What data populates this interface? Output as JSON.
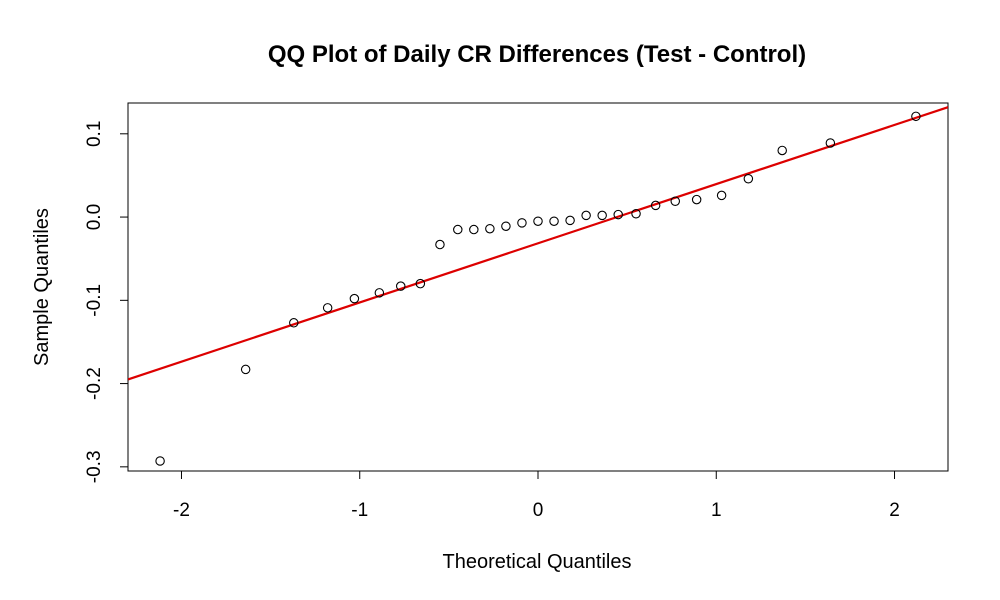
{
  "chart_data": {
    "type": "scatter",
    "title": "QQ Plot of Daily CR Differences (Test - Control)",
    "xlabel": "Theoretical Quantiles",
    "ylabel": "Sample Quantiles",
    "xlim": [
      -2.3,
      2.3
    ],
    "ylim": [
      -0.305,
      0.137
    ],
    "xticks": [
      -2,
      -1,
      0,
      1,
      2
    ],
    "xtick_labels": [
      "-2",
      "-1",
      "0",
      "1",
      "2"
    ],
    "yticks": [
      -0.3,
      -0.2,
      -0.1,
      0.0,
      0.1
    ],
    "ytick_labels": [
      "-0.3",
      "-0.2",
      "-0.1",
      "0.0",
      "0.1"
    ],
    "grid": false,
    "legend": "none",
    "points": [
      {
        "x": -2.12,
        "y": -0.293
      },
      {
        "x": -1.64,
        "y": -0.183
      },
      {
        "x": -1.37,
        "y": -0.127
      },
      {
        "x": -1.18,
        "y": -0.109
      },
      {
        "x": -1.03,
        "y": -0.098
      },
      {
        "x": -0.89,
        "y": -0.091
      },
      {
        "x": -0.77,
        "y": -0.083
      },
      {
        "x": -0.66,
        "y": -0.08
      },
      {
        "x": -0.55,
        "y": -0.033
      },
      {
        "x": -0.45,
        "y": -0.015
      },
      {
        "x": -0.36,
        "y": -0.015
      },
      {
        "x": -0.27,
        "y": -0.014
      },
      {
        "x": -0.18,
        "y": -0.011
      },
      {
        "x": -0.09,
        "y": -0.007
      },
      {
        "x": 0.0,
        "y": -0.005
      },
      {
        "x": 0.09,
        "y": -0.005
      },
      {
        "x": 0.18,
        "y": -0.004
      },
      {
        "x": 0.27,
        "y": 0.002
      },
      {
        "x": 0.36,
        "y": 0.002
      },
      {
        "x": 0.45,
        "y": 0.003
      },
      {
        "x": 0.55,
        "y": 0.004
      },
      {
        "x": 0.66,
        "y": 0.014
      },
      {
        "x": 0.77,
        "y": 0.019
      },
      {
        "x": 0.89,
        "y": 0.021
      },
      {
        "x": 1.03,
        "y": 0.026
      },
      {
        "x": 1.18,
        "y": 0.046
      },
      {
        "x": 1.37,
        "y": 0.08
      },
      {
        "x": 1.64,
        "y": 0.089
      },
      {
        "x": 2.12,
        "y": 0.121
      }
    ],
    "qq_line": {
      "x1": -2.3,
      "y1": -0.195,
      "x2": 2.3,
      "y2": 0.132
    },
    "colors": {
      "points": "#000000",
      "qq_line": "#dd0000",
      "frame": "#000000"
    }
  }
}
